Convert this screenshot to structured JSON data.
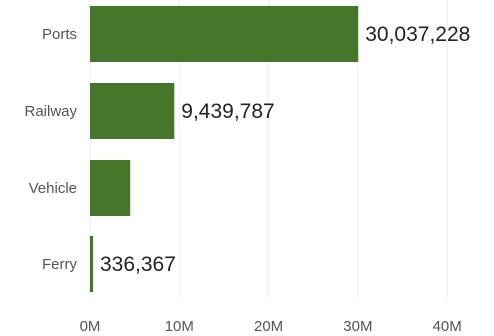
{
  "chart_data": {
    "type": "bar",
    "orientation": "horizontal",
    "categories": [
      "Ports",
      "Railway",
      "Vehicle",
      "Ferry"
    ],
    "values": [
      30037228,
      9439787,
      4500000,
      336367
    ],
    "data_labels": [
      "30,037,228",
      "9,439,787",
      "",
      "336,367"
    ],
    "x_ticks": [
      0,
      10000000,
      20000000,
      30000000,
      40000000
    ],
    "x_tick_labels": [
      "0M",
      "10M",
      "20M",
      "30M",
      "40M"
    ],
    "xlim": [
      0,
      45000000
    ],
    "grid": "vertical",
    "bar_color": "#45762a",
    "grid_color": "#ececec",
    "title": "",
    "xlabel": "",
    "ylabel": ""
  }
}
